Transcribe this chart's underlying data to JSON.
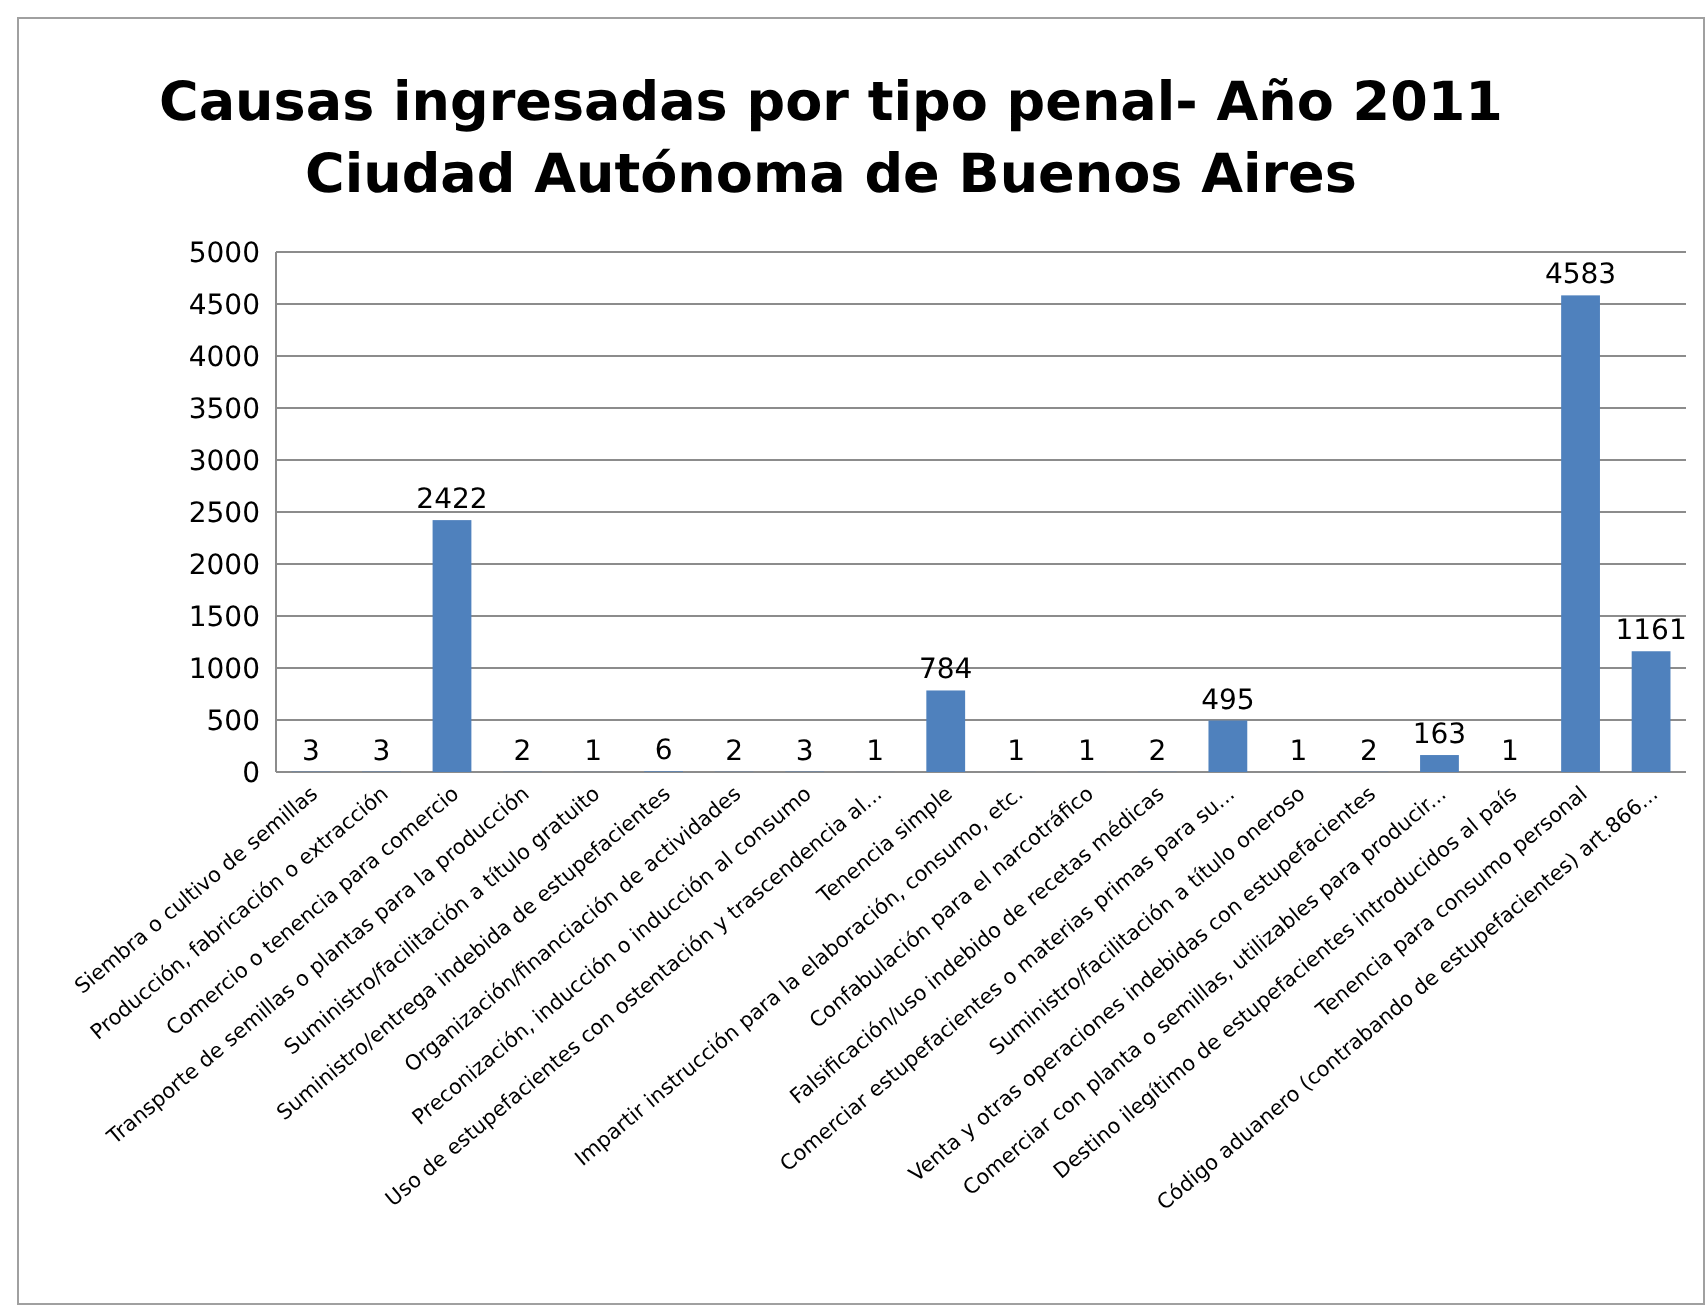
{
  "chart_data": {
    "type": "bar",
    "title": "Causas ingresadas por tipo penal- Año 2011\nCiudad Autónoma de Buenos Aires",
    "categories": [
      "Siembra o cultivo de semillas",
      "Producción, fabricación o extracción",
      "Comercio o tenencia para comercio",
      "Transporte de semillas o plantas para la producción",
      "Suministro/facilitación a título gratuito",
      "Suministro/entrega indebida de estupefacientes",
      "Organización/financiación de actividades",
      "Preconización, inducción o inducción al consumo",
      "Uso de estupefacientes con ostentación y trascendencia al...",
      "Tenencia simple",
      "Impartir instrucción para la elaboración, consumo, etc.",
      "Confabulación para el narcotráfico",
      "Falsificación/uso indebido de recetas médicas",
      "Comerciar estupefacientes o materias primas para su...",
      "Suministro/facilitación a título oneroso",
      "Venta y otras operaciones indebidas con estupefacientes",
      "Comerciar con planta o semillas, utilizables para producir...",
      "Destino ilegítimo de estupefacientes introducidos al país",
      "Tenencia para consumo personal",
      "Código aduanero (contrabando de estupefacientes) art.866..."
    ],
    "values": [
      3,
      3,
      2422,
      2,
      1,
      6,
      2,
      3,
      1,
      784,
      1,
      1,
      2,
      495,
      1,
      2,
      163,
      1,
      4583,
      1161
    ],
    "color": "#4f81bd",
    "ylim": [
      0,
      5000
    ],
    "yticks": [
      0,
      500,
      1000,
      1500,
      2000,
      2500,
      3000,
      3500,
      4000,
      4500,
      5000
    ],
    "grid": "y",
    "data_labels": true
  }
}
